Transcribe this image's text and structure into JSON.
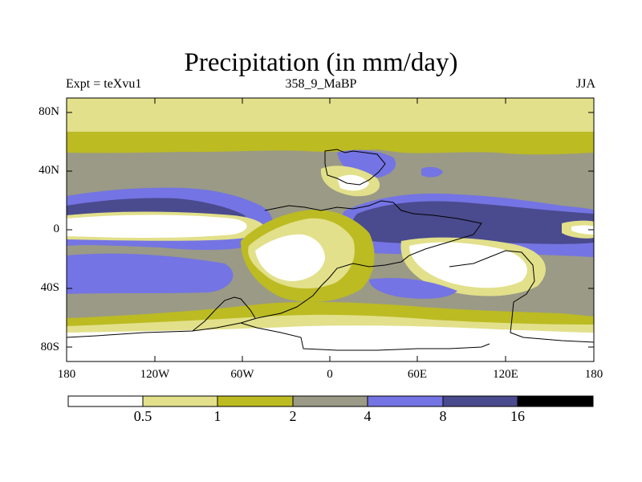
{
  "title": "Precipitation (in mm/day)",
  "subtitle_left": "Expt = teXvu1",
  "subtitle_center": "358_9_MaBP",
  "subtitle_right": "JJA",
  "lat_ticks": [
    "80N",
    "40N",
    "0",
    "40S",
    "80S"
  ],
  "lon_ticks": [
    "180",
    "120W",
    "60W",
    "0",
    "60E",
    "120E",
    "180"
  ],
  "colorbar": {
    "labels": [
      "0.5",
      "1",
      "2",
      "4",
      "8",
      "16"
    ],
    "colors": [
      "#ffffff",
      "#e2e08a",
      "#bcbb22",
      "#9a9a86",
      "#7474e4",
      "#4a4a8e",
      "#000000"
    ]
  },
  "colors": {
    "dry": "#ffffff",
    "light": "#e2e08a",
    "moderate": "#bcbb22",
    "grey": "#9a9a86",
    "wet": "#7474e4",
    "very_wet": "#4a4a8e",
    "extreme": "#000000"
  }
}
